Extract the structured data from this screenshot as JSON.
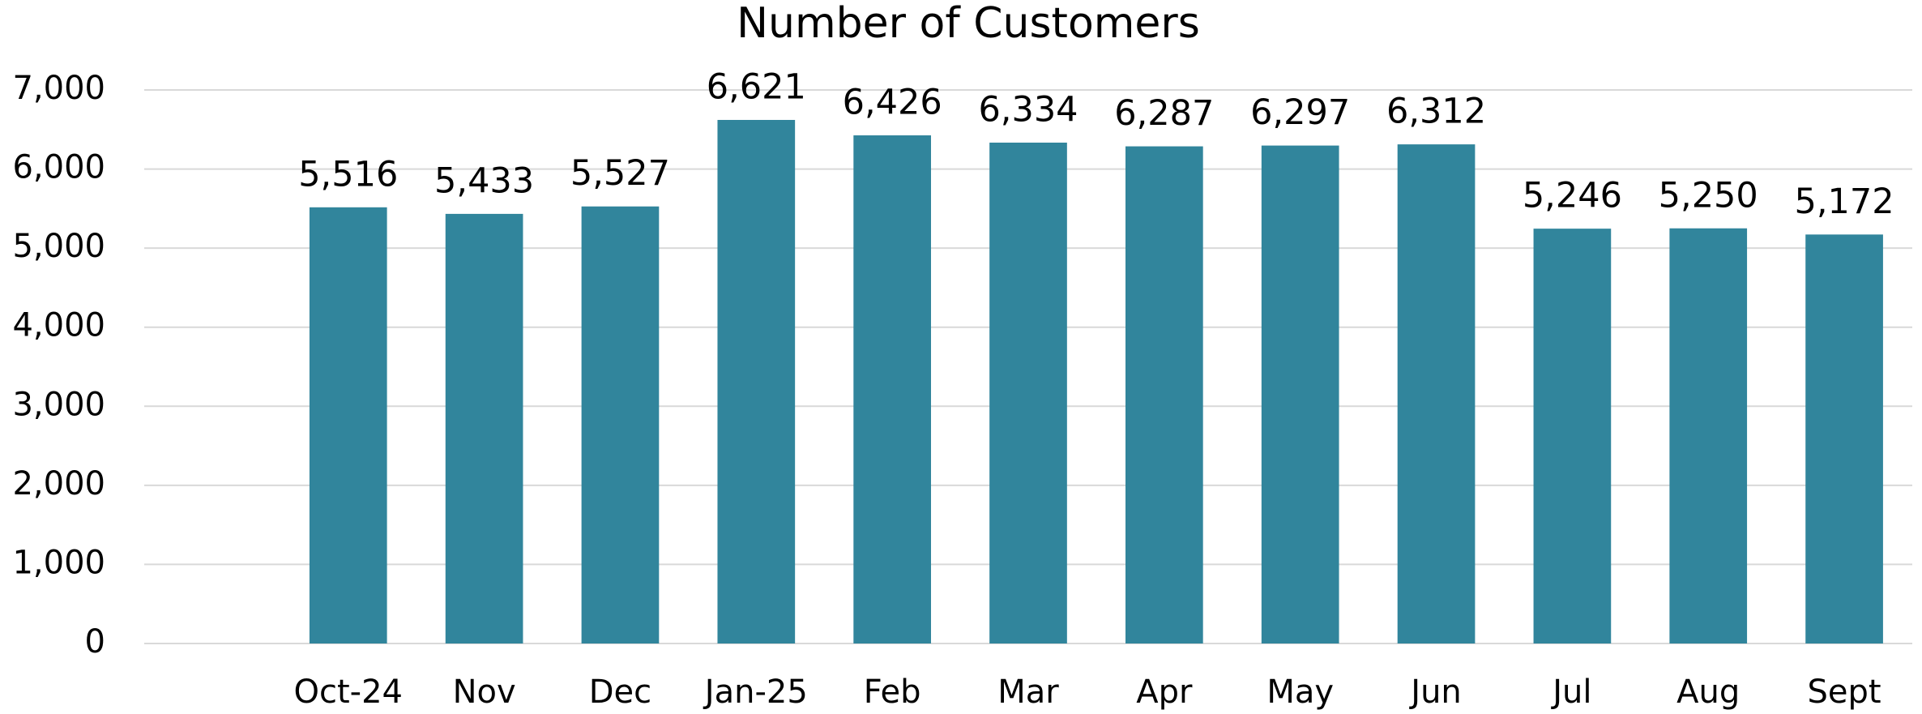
{
  "chart_data": {
    "type": "bar",
    "title": "Number of Customers",
    "categories": [
      null,
      "Oct-24",
      "Nov",
      "Dec",
      "Jan-25",
      "Feb",
      "Mar",
      "Apr",
      "May",
      "Jun",
      "Jul",
      "Aug",
      "Sept"
    ],
    "values": [
      null,
      5516,
      5433,
      5527,
      6621,
      6426,
      6334,
      6287,
      6297,
      6312,
      5246,
      5250,
      5172
    ],
    "value_labels": [
      null,
      "5,516",
      "5,433",
      "5,527",
      "6,621",
      "6,426",
      "6,334",
      "6,287",
      "6,297",
      "6,312",
      "5,246",
      "5,250",
      "5,172"
    ],
    "color": "#31859c",
    "ylim": [
      0,
      7000
    ],
    "yticks": [
      0,
      {
        "value": 1000,
        "label": "1,000"
      },
      {
        "value": 2000,
        "label": "2,000"
      },
      {
        "value": 3000,
        "label": "3,000"
      },
      {
        "value": 4000,
        "label": "4,000"
      },
      {
        "value": 5000,
        "label": "5,000"
      },
      {
        "value": 6000,
        "label": "6,000"
      },
      {
        "value": 7000,
        "label": "7,000"
      }
    ],
    "grid": true
  }
}
